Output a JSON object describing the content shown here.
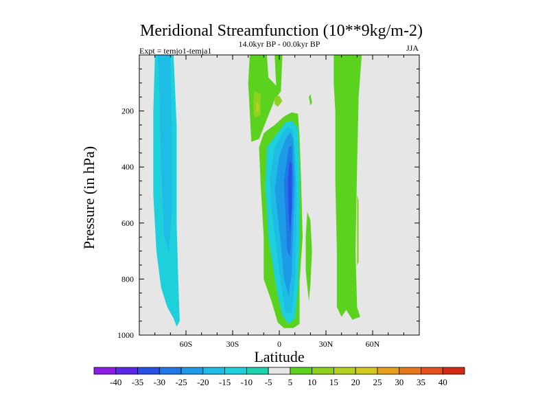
{
  "chart_data": {
    "type": "heatmap",
    "title": "Meridional Streamfunction (10**9kg/m-2)",
    "subtitle_left": "Expt = temjo1-temja1",
    "subtitle_center": "14.0kyr BP - 00.0kyr BP",
    "subtitle_right": "JJA",
    "xlabel": "Latitude",
    "ylabel": "Pressure (in hPa)",
    "xlim": [
      -90,
      90
    ],
    "ylim": [
      1000,
      0
    ],
    "x_ticks": [
      {
        "value": -60,
        "label": "60S"
      },
      {
        "value": -30,
        "label": "30S"
      },
      {
        "value": 0,
        "label": "0"
      },
      {
        "value": 30,
        "label": "30N"
      },
      {
        "value": 60,
        "label": "60N"
      }
    ],
    "y_ticks": [
      {
        "value": 200,
        "label": "200"
      },
      {
        "value": 400,
        "label": "400"
      },
      {
        "value": 600,
        "label": "600"
      },
      {
        "value": 800,
        "label": "800"
      },
      {
        "value": 1000,
        "label": "1000"
      }
    ],
    "background_color": "#e6e6e6",
    "colorbar": {
      "labels": [
        "-40",
        "-35",
        "-30",
        "-25",
        "-20",
        "-15",
        "-10",
        "-5",
        "5",
        "10",
        "15",
        "20",
        "25",
        "30",
        "35",
        "40"
      ],
      "colors": [
        "#8a1ee6",
        "#5a28e6",
        "#2850e6",
        "#1f78e6",
        "#1e9be6",
        "#1ebde6",
        "#1ecfdc",
        "#1ed2b0",
        "#e6e6e6",
        "#5ad21e",
        "#8cd21e",
        "#b4d21e",
        "#d2c81e",
        "#e6a01e",
        "#e6781e",
        "#e6501e",
        "#d22a14"
      ]
    },
    "regions": [
      {
        "level": -10,
        "points": [
          [
            -80,
            0
          ],
          [
            -68,
            0
          ],
          [
            -66,
            250
          ],
          [
            -66,
            600
          ],
          [
            -65,
            800
          ],
          [
            -64,
            950
          ],
          [
            -66,
            970
          ],
          [
            -68,
            940
          ],
          [
            -72,
            900
          ],
          [
            -76,
            830
          ],
          [
            -79,
            700
          ],
          [
            -81,
            500
          ],
          [
            -81,
            200
          ]
        ]
      },
      {
        "level": -15,
        "points": [
          [
            -78,
            0
          ],
          [
            -70,
            0
          ],
          [
            -69,
            300
          ],
          [
            -69,
            550
          ],
          [
            -71,
            700
          ],
          [
            -74,
            650
          ],
          [
            -76,
            400
          ],
          [
            -77,
            150
          ]
        ]
      },
      {
        "level": 5,
        "points": [
          [
            -19,
            0
          ],
          [
            -8,
            0
          ],
          [
            -7,
            80
          ],
          [
            -2,
            110
          ],
          [
            -3,
            0
          ],
          [
            2,
            0
          ],
          [
            1,
            130
          ],
          [
            -3,
            160
          ],
          [
            -8,
            230
          ],
          [
            -13,
            300
          ],
          [
            -18,
            310
          ],
          [
            -19,
            200
          ],
          [
            -20,
            100
          ]
        ]
      },
      {
        "level": 10,
        "points": [
          [
            -16,
            130
          ],
          [
            -12,
            140
          ],
          [
            -12,
            215
          ],
          [
            -16,
            225
          ],
          [
            -17,
            180
          ]
        ]
      },
      {
        "level": 15,
        "points": [
          [
            -15,
            170
          ],
          [
            -13,
            175
          ],
          [
            -13,
            200
          ],
          [
            -15,
            205
          ]
        ]
      },
      {
        "level": 10,
        "points": [
          [
            -3,
            150
          ],
          [
            0,
            145
          ],
          [
            2,
            165
          ],
          [
            -1,
            185
          ],
          [
            -3,
            175
          ]
        ]
      },
      {
        "level": 5,
        "points": [
          [
            35,
            0
          ],
          [
            53,
            0
          ],
          [
            51,
            150
          ],
          [
            50,
            400
          ],
          [
            49,
            700
          ],
          [
            50,
            900
          ],
          [
            52,
            935
          ],
          [
            47,
            945
          ],
          [
            43,
            910
          ],
          [
            40,
            935
          ],
          [
            37,
            900
          ],
          [
            37,
            700
          ],
          [
            36,
            450
          ],
          [
            36,
            200
          ],
          [
            35,
            100
          ]
        ]
      },
      {
        "level": 10,
        "points": [
          [
            50,
            500
          ],
          [
            51,
            520
          ],
          [
            51,
            740
          ],
          [
            50,
            750
          ]
        ]
      },
      {
        "level": 5,
        "points": [
          [
            19,
            150
          ],
          [
            20,
            140
          ],
          [
            21,
            170
          ],
          [
            20,
            180
          ]
        ]
      },
      {
        "level": 5,
        "points": [
          [
            -8,
            270
          ],
          [
            -3,
            250
          ],
          [
            3,
            220
          ],
          [
            8,
            205
          ],
          [
            12,
            210
          ],
          [
            13,
            290
          ],
          [
            14,
            440
          ],
          [
            15,
            650
          ],
          [
            13,
            810
          ],
          [
            13,
            960
          ],
          [
            9,
            975
          ],
          [
            3,
            975
          ],
          [
            -1,
            955
          ],
          [
            -5,
            880
          ],
          [
            -10,
            800
          ],
          [
            -10,
            650
          ],
          [
            -12,
            460
          ],
          [
            -13,
            330
          ],
          [
            -10,
            280
          ]
        ]
      },
      {
        "level": -10,
        "points": [
          [
            0,
            270
          ],
          [
            4,
            240
          ],
          [
            8,
            235
          ],
          [
            12,
            260
          ],
          [
            13,
            420
          ],
          [
            13,
            650
          ],
          [
            12,
            830
          ],
          [
            10,
            940
          ],
          [
            6,
            960
          ],
          [
            2,
            930
          ],
          [
            -1,
            860
          ],
          [
            -4,
            760
          ],
          [
            -7,
            650
          ],
          [
            -9,
            470
          ],
          [
            -8,
            330
          ]
        ]
      },
      {
        "level": -15,
        "points": [
          [
            2,
            280
          ],
          [
            6,
            255
          ],
          [
            9,
            275
          ],
          [
            11,
            420
          ],
          [
            11,
            620
          ],
          [
            10,
            800
          ],
          [
            8,
            920
          ],
          [
            4,
            920
          ],
          [
            1,
            820
          ],
          [
            -2,
            680
          ],
          [
            -5,
            560
          ],
          [
            -6,
            440
          ],
          [
            -3,
            330
          ]
        ]
      },
      {
        "level": -20,
        "points": [
          [
            4,
            300
          ],
          [
            7,
            275
          ],
          [
            9,
            300
          ],
          [
            10,
            450
          ],
          [
            9,
            620
          ],
          [
            8,
            780
          ],
          [
            6,
            860
          ],
          [
            3,
            800
          ],
          [
            1,
            680
          ],
          [
            -1,
            570
          ],
          [
            -3,
            480
          ],
          [
            0,
            360
          ]
        ]
      },
      {
        "level": -25,
        "points": [
          [
            6,
            330
          ],
          [
            8,
            320
          ],
          [
            9,
            450
          ],
          [
            8,
            600
          ],
          [
            7,
            720
          ],
          [
            5,
            700
          ],
          [
            4,
            570
          ],
          [
            3,
            450
          ]
        ]
      },
      {
        "level": -30,
        "points": [
          [
            6.5,
            380
          ],
          [
            8,
            390
          ],
          [
            8,
            540
          ],
          [
            7,
            640
          ],
          [
            6,
            560
          ],
          [
            5.5,
            450
          ]
        ]
      },
      {
        "level": 5,
        "points": [
          [
            18,
            560
          ],
          [
            20,
            590
          ],
          [
            21,
            700
          ],
          [
            20,
            820
          ],
          [
            19,
            880
          ],
          [
            17,
            770
          ],
          [
            17,
            650
          ]
        ]
      }
    ]
  }
}
